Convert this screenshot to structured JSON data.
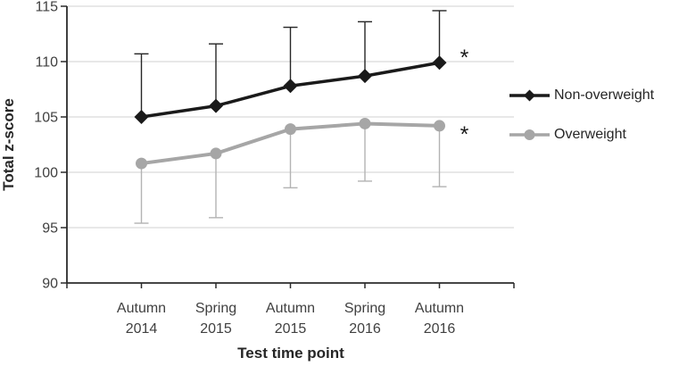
{
  "chart_data": {
    "type": "line",
    "title": "",
    "xlabel": "Test time point",
    "ylabel": "Total z-score",
    "ylim": [
      90,
      115
    ],
    "yticks": [
      90,
      95,
      100,
      105,
      110,
      115
    ],
    "categories": [
      [
        "Autumn",
        "2014"
      ],
      [
        "Spring",
        "2015"
      ],
      [
        "Autumn",
        "2015"
      ],
      [
        "Spring",
        "2016"
      ],
      [
        "Autumn",
        "2016"
      ]
    ],
    "grid": true,
    "legend_position": "right",
    "series": [
      {
        "name": "Non-overweight",
        "marker": "diamond",
        "color": "#1a1a1a",
        "error_color": "#262626",
        "values": [
          105.0,
          106.0,
          107.8,
          108.7,
          109.9
        ],
        "error_direction": "up",
        "error_ends": [
          110.7,
          111.6,
          113.1,
          113.6,
          114.6
        ],
        "annotation": "*"
      },
      {
        "name": "Overweight",
        "marker": "circle",
        "color": "#a6a6a6",
        "error_color": "#b3b3b3",
        "values": [
          100.8,
          101.7,
          103.9,
          104.4,
          104.2
        ],
        "error_direction": "down",
        "error_ends": [
          95.4,
          95.9,
          98.6,
          99.2,
          98.7
        ],
        "annotation": "*"
      }
    ],
    "colors": {
      "gridline": "#d9d9d9",
      "axis": "#2b2b2b",
      "tick_text": "#404040",
      "annotation": "#1a1a1a"
    }
  }
}
